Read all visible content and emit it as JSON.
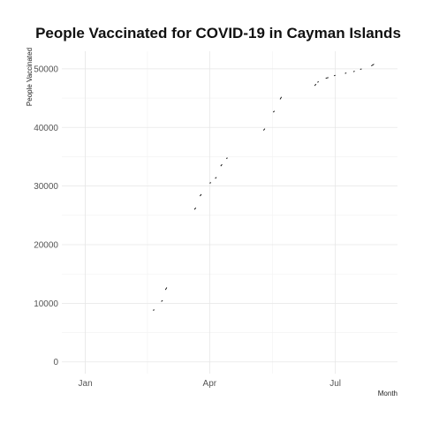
{
  "chart_data": {
    "type": "line",
    "title": "People Vaccinated for COVID-19 in Cayman Islands",
    "xlabel": "Month",
    "ylabel": "People Vaccinated",
    "x_ticks": [
      "Jan",
      "Apr",
      "Jul"
    ],
    "x_tick_dates": [
      "2021-01-01",
      "2021-04-01",
      "2021-07-01"
    ],
    "xlim": [
      "2020-12-15",
      "2021-08-15"
    ],
    "y_ticks": [
      "0",
      "10000",
      "20000",
      "30000",
      "40000",
      "50000"
    ],
    "y_tick_values": [
      0,
      10000,
      20000,
      30000,
      40000,
      50000
    ],
    "ylim": [
      -2000,
      53000
    ],
    "grid": true,
    "legend": "none",
    "line_color": "#000000",
    "segments": [
      [
        [
          "2021-02-19",
          8800
        ],
        [
          "2021-02-20",
          8900
        ]
      ],
      [
        [
          "2021-02-25",
          10300
        ],
        [
          "2021-02-26",
          10500
        ]
      ],
      [
        [
          "2021-02-28",
          12300
        ],
        [
          "2021-03-01",
          12700
        ]
      ],
      [
        [
          "2021-03-21",
          26000
        ],
        [
          "2021-03-22",
          26300
        ]
      ],
      [
        [
          "2021-03-25",
          28300
        ],
        [
          "2021-03-26",
          28600
        ]
      ],
      [
        [
          "2021-04-01",
          30500
        ],
        [
          "2021-04-02",
          30600
        ]
      ],
      [
        [
          "2021-04-05",
          31300
        ],
        [
          "2021-04-06",
          31500
        ]
      ],
      [
        [
          "2021-04-09",
          33400
        ],
        [
          "2021-04-10",
          33700
        ]
      ],
      [
        [
          "2021-04-13",
          34700
        ],
        [
          "2021-04-14",
          34800
        ]
      ],
      [
        [
          "2021-05-10",
          39500
        ],
        [
          "2021-05-11",
          39800
        ]
      ],
      [
        [
          "2021-05-17",
          42600
        ],
        [
          "2021-05-18",
          42800
        ]
      ],
      [
        [
          "2021-05-22",
          44800
        ],
        [
          "2021-05-23",
          45200
        ]
      ],
      [
        [
          "2021-06-16",
          47100
        ],
        [
          "2021-06-17",
          47400
        ]
      ],
      [
        [
          "2021-06-18",
          47700
        ],
        [
          "2021-06-19",
          47800
        ]
      ],
      [
        [
          "2021-06-24",
          48400
        ],
        [
          "2021-06-26",
          48500
        ]
      ],
      [
        [
          "2021-06-30",
          48800
        ],
        [
          "2021-07-01",
          48900
        ]
      ],
      [
        [
          "2021-07-08",
          49200
        ],
        [
          "2021-07-09",
          49300
        ]
      ],
      [
        [
          "2021-07-14",
          49500
        ],
        [
          "2021-07-15",
          49600
        ]
      ],
      [
        [
          "2021-07-19",
          49900
        ],
        [
          "2021-07-20",
          50000
        ]
      ],
      [
        [
          "2021-07-27",
          50500
        ],
        [
          "2021-07-29",
          50800
        ]
      ]
    ]
  }
}
